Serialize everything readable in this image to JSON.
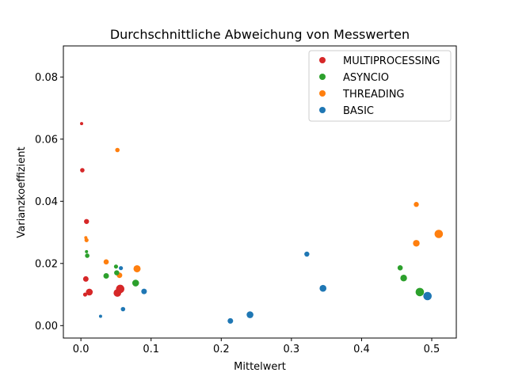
{
  "chart_data": {
    "type": "scatter",
    "title": "Durchschnittliche Abweichung von Messwerten",
    "xlabel": "Mittelwert",
    "ylabel": "Varianzkoeffizient",
    "xlim": [
      -0.025,
      0.535
    ],
    "ylim": [
      -0.004,
      0.09
    ],
    "xticks": [
      0.0,
      0.1,
      0.2,
      0.3,
      0.4,
      0.5
    ],
    "xtick_labels": [
      "0.0",
      "0.1",
      "0.2",
      "0.3",
      "0.4",
      "0.5"
    ],
    "yticks": [
      0.0,
      0.02,
      0.04,
      0.06,
      0.08
    ],
    "ytick_labels": [
      "0.00",
      "0.02",
      "0.04",
      "0.06",
      "0.08"
    ],
    "grid": false,
    "legend_position": "top-right",
    "series": [
      {
        "name": "MULTIPROCESSING",
        "color": "#d62728",
        "points": [
          {
            "x": 0.001,
            "y": 0.065,
            "s": 2.0
          },
          {
            "x": 0.002,
            "y": 0.05,
            "s": 2.8
          },
          {
            "x": 0.008,
            "y": 0.0335,
            "s": 3.2
          },
          {
            "x": 0.007,
            "y": 0.015,
            "s": 3.5
          },
          {
            "x": 0.006,
            "y": 0.01,
            "s": 2.6
          },
          {
            "x": 0.012,
            "y": 0.0108,
            "s": 4.3
          },
          {
            "x": 0.052,
            "y": 0.0105,
            "s": 4.8
          },
          {
            "x": 0.056,
            "y": 0.0118,
            "s": 5.3
          }
        ]
      },
      {
        "name": "ASYNCIO",
        "color": "#2ca02c",
        "points": [
          {
            "x": 0.008,
            "y": 0.0238,
            "s": 2.0
          },
          {
            "x": 0.009,
            "y": 0.0225,
            "s": 2.8
          },
          {
            "x": 0.036,
            "y": 0.016,
            "s": 3.5
          },
          {
            "x": 0.05,
            "y": 0.019,
            "s": 2.6
          },
          {
            "x": 0.051,
            "y": 0.017,
            "s": 3.2
          },
          {
            "x": 0.078,
            "y": 0.0137,
            "s": 4.3
          },
          {
            "x": 0.455,
            "y": 0.0186,
            "s": 3.3
          },
          {
            "x": 0.46,
            "y": 0.0153,
            "s": 4.2
          },
          {
            "x": 0.483,
            "y": 0.0108,
            "s": 5.3
          }
        ]
      },
      {
        "name": "THREADING",
        "color": "#ff7f0e",
        "points": [
          {
            "x": 0.052,
            "y": 0.0565,
            "s": 2.8
          },
          {
            "x": 0.007,
            "y": 0.0283,
            "s": 2.0
          },
          {
            "x": 0.008,
            "y": 0.0275,
            "s": 2.6
          },
          {
            "x": 0.036,
            "y": 0.0205,
            "s": 3.3
          },
          {
            "x": 0.055,
            "y": 0.0162,
            "s": 3.5
          },
          {
            "x": 0.08,
            "y": 0.0183,
            "s": 4.5
          },
          {
            "x": 0.478,
            "y": 0.039,
            "s": 3.2
          },
          {
            "x": 0.478,
            "y": 0.0265,
            "s": 4.2
          },
          {
            "x": 0.51,
            "y": 0.0295,
            "s": 5.3
          }
        ]
      },
      {
        "name": "BASIC",
        "color": "#1f77b4",
        "points": [
          {
            "x": 0.028,
            "y": 0.003,
            "s": 2.0
          },
          {
            "x": 0.057,
            "y": 0.0185,
            "s": 2.6
          },
          {
            "x": 0.06,
            "y": 0.0053,
            "s": 2.8
          },
          {
            "x": 0.09,
            "y": 0.011,
            "s": 3.5
          },
          {
            "x": 0.213,
            "y": 0.0015,
            "s": 3.5
          },
          {
            "x": 0.241,
            "y": 0.0035,
            "s": 4.3
          },
          {
            "x": 0.322,
            "y": 0.023,
            "s": 3.2
          },
          {
            "x": 0.345,
            "y": 0.012,
            "s": 4.3
          },
          {
            "x": 0.494,
            "y": 0.0095,
            "s": 5.3
          }
        ]
      }
    ]
  }
}
